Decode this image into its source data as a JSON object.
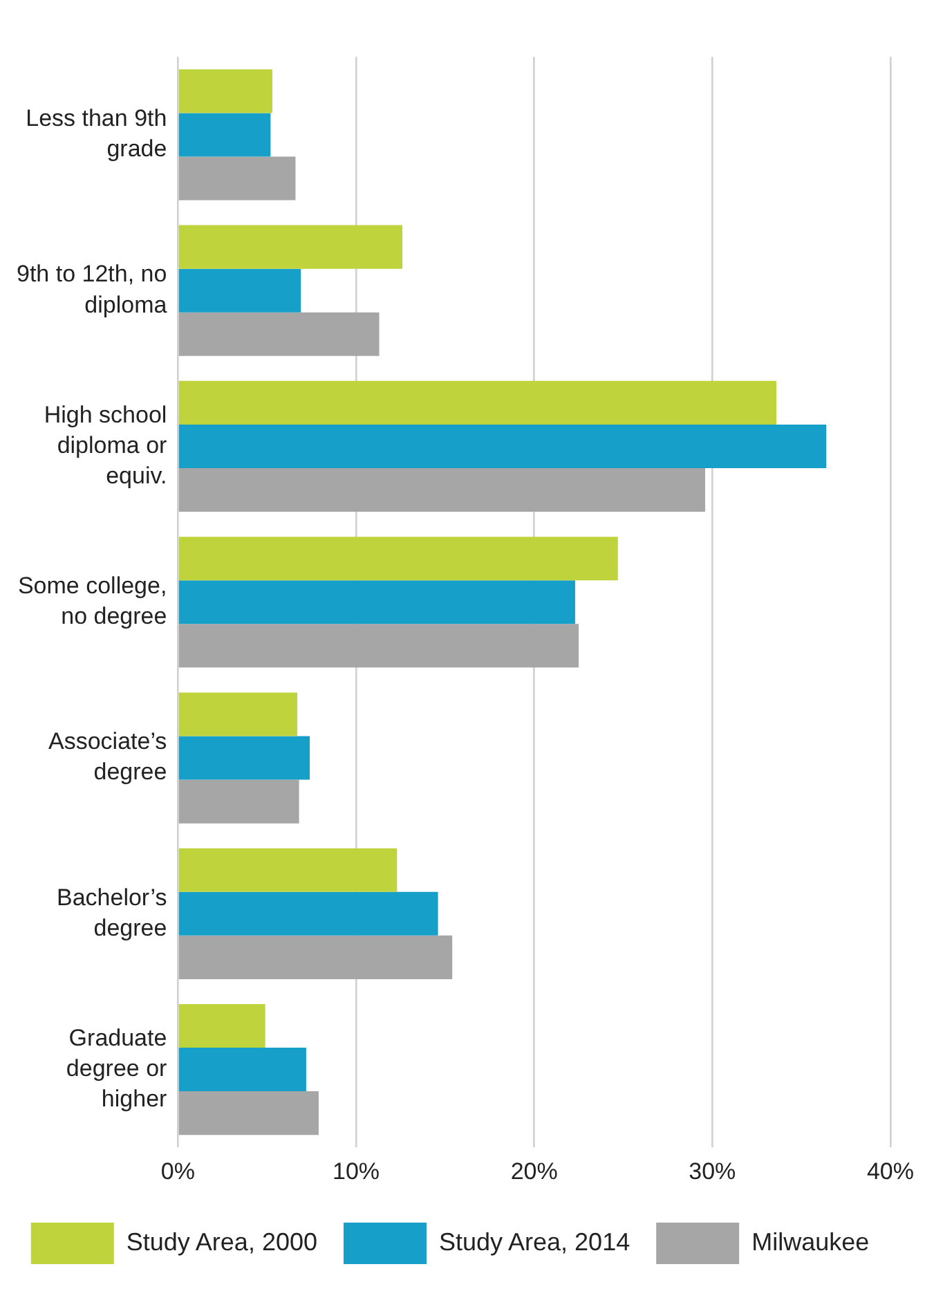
{
  "chart_data": {
    "type": "bar",
    "orientation": "horizontal",
    "categories": [
      "Less than 9th grade",
      "9th to 12th, no diploma",
      "High school diploma or equiv.",
      "Some college, no degree",
      "Associate’s degree",
      "Bachelor’s degree",
      "Graduate degree or higher"
    ],
    "series": [
      {
        "name": "Study Area, 2000",
        "color": "#bfd43c",
        "values": [
          5.3,
          12.6,
          33.6,
          24.7,
          6.7,
          12.3,
          4.9
        ]
      },
      {
        "name": "Study Area, 2014",
        "color": "#16a0c9",
        "values": [
          5.2,
          6.9,
          36.4,
          22.3,
          7.4,
          14.6,
          7.2
        ]
      },
      {
        "name": "Milwaukee",
        "color": "#a6a6a6",
        "values": [
          6.6,
          11.3,
          29.6,
          22.5,
          6.8,
          15.4,
          7.9
        ]
      }
    ],
    "xlim": [
      0,
      40
    ],
    "xticks": [
      {
        "value": 0,
        "label": "0%"
      },
      {
        "value": 10,
        "label": "10%"
      },
      {
        "value": 20,
        "label": "20%"
      },
      {
        "value": 30,
        "label": "30%"
      },
      {
        "value": 40,
        "label": "40%"
      }
    ],
    "grid": "x",
    "legend": "bottom"
  }
}
